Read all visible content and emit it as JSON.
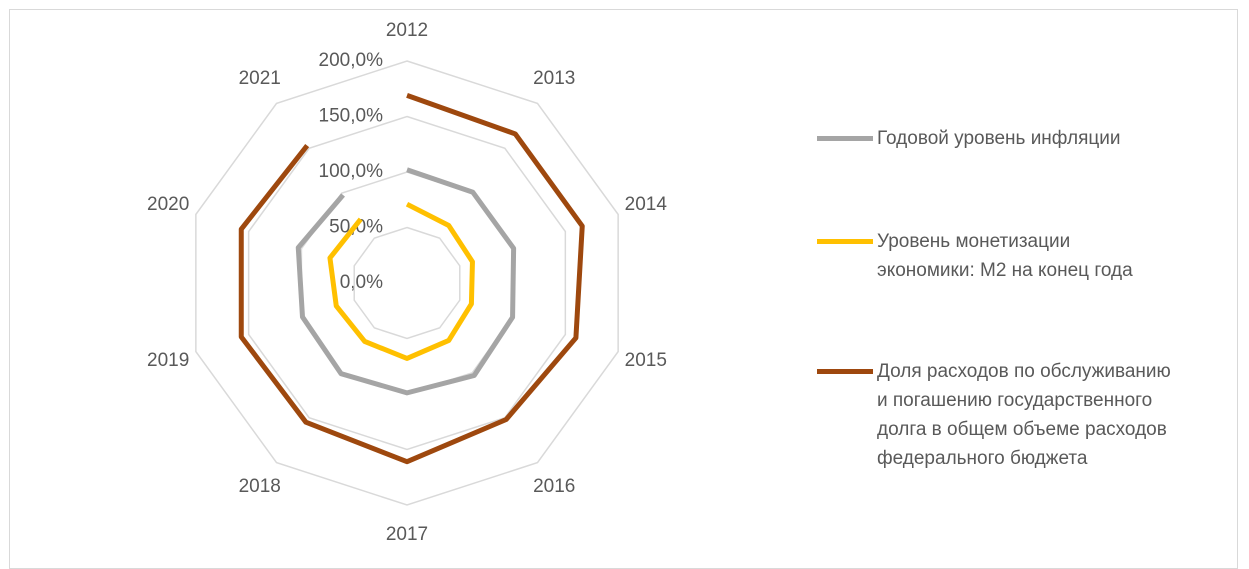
{
  "chart_data": {
    "type": "radar",
    "categories": [
      "2012",
      "2013",
      "2014",
      "2015",
      "2016",
      "2017",
      "2018",
      "2019",
      "2020",
      "2021"
    ],
    "ylim": [
      0,
      200
    ],
    "yticks": [
      {
        "value": 0,
        "label": "0,0%"
      },
      {
        "value": 50,
        "label": "50,0%"
      },
      {
        "value": 100,
        "label": "100,0%"
      },
      {
        "value": 150,
        "label": "150,0%"
      },
      {
        "value": 200,
        "label": "200,0%"
      }
    ],
    "grid": true,
    "series": [
      {
        "name": "Годовой уровень инфляции",
        "color": "#a5a5a5",
        "values": [
          102,
          101,
          101,
          100,
          103,
          99,
          101,
          99,
          103,
          98
        ]
      },
      {
        "name": "Уровень монетизации\nэкономики: М2 на конец года",
        "color": "#ffc000",
        "values": [
          71,
          64,
          62,
          61,
          64,
          68,
          65,
          67,
          73,
          71
        ]
      },
      {
        "name": "Доля расходов по обслуживанию\nи погашению государственного\nдолга в общем объеме расходов\nфедерального бюджета",
        "color": "#9e480e",
        "values": [
          169,
          166,
          166,
          160,
          152,
          161,
          155,
          157,
          157,
          153
        ]
      }
    ]
  }
}
